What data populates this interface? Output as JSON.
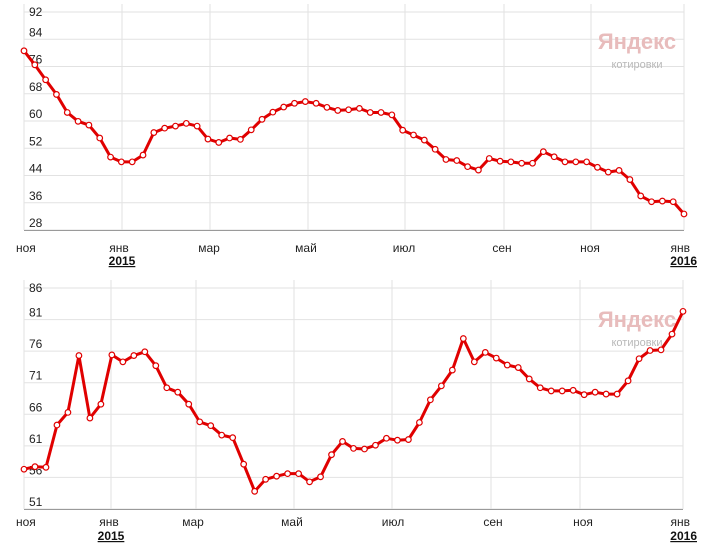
{
  "watermark": {
    "brand": "Яндекс",
    "subtitle": "котировки"
  },
  "colors": {
    "line": "#e00000",
    "grid": "#e2e2e2",
    "marker_fill": "#ffffff"
  },
  "chart_data": [
    {
      "type": "line",
      "ylim": [
        28,
        92
      ],
      "yticks": [
        28,
        36,
        44,
        52,
        60,
        68,
        76,
        84,
        92
      ],
      "xlabels": [
        "ноя",
        "янв",
        "мар",
        "май",
        "июл",
        "сен",
        "ноя",
        "янв"
      ],
      "year_labels": [
        "2015",
        "2016"
      ],
      "grid": true,
      "series": [
        {
          "values": [
            80.6,
            76.5,
            72.1,
            67.8,
            62.5,
            59.9,
            58.8,
            55.0,
            49.4,
            48.0,
            48.0,
            50.0,
            56.6,
            57.9,
            58.5,
            59.3,
            58.5,
            54.7,
            53.7,
            55.0,
            54.6,
            57.4,
            60.5,
            62.6,
            64.1,
            65.2,
            65.7,
            65.2,
            64.0,
            63.1,
            63.3,
            63.7,
            62.5,
            62.5,
            61.8,
            57.3,
            55.9,
            54.4,
            51.7,
            48.7,
            48.4,
            46.6,
            45.6,
            49.0,
            48.2,
            48.0,
            47.6,
            47.6,
            51.0,
            49.5,
            48.0,
            48.0,
            48.0,
            46.4,
            45.0,
            45.5,
            42.8,
            38.0,
            36.3,
            36.5,
            36.3,
            32.7
          ]
        }
      ]
    },
    {
      "type": "line",
      "ylim": [
        51,
        86
      ],
      "yticks": [
        51,
        56,
        61,
        66,
        71,
        76,
        81,
        86
      ],
      "xlabels": [
        "ноя",
        "янв",
        "мар",
        "май",
        "июл",
        "сен",
        "ноя",
        "янв"
      ],
      "year_labels": [
        "2015",
        "2016"
      ],
      "grid": true,
      "series": [
        {
          "values": [
            57.3,
            57.7,
            57.6,
            64.3,
            66.3,
            75.3,
            65.4,
            67.6,
            75.4,
            74.3,
            75.3,
            75.9,
            73.7,
            70.2,
            69.5,
            67.6,
            64.8,
            64.2,
            62.7,
            62.3,
            58.1,
            53.8,
            55.7,
            56.2,
            56.6,
            56.6,
            55.3,
            56.1,
            59.6,
            61.7,
            60.6,
            60.5,
            61.1,
            62.2,
            61.9,
            62.0,
            64.7,
            68.3,
            70.5,
            73.0,
            78.0,
            74.3,
            75.8,
            74.9,
            73.8,
            73.4,
            71.6,
            70.2,
            69.7,
            69.7,
            69.8,
            69.1,
            69.5,
            69.2,
            69.2,
            71.3,
            74.8,
            76.1,
            76.2,
            78.7,
            82.3
          ]
        }
      ]
    }
  ]
}
